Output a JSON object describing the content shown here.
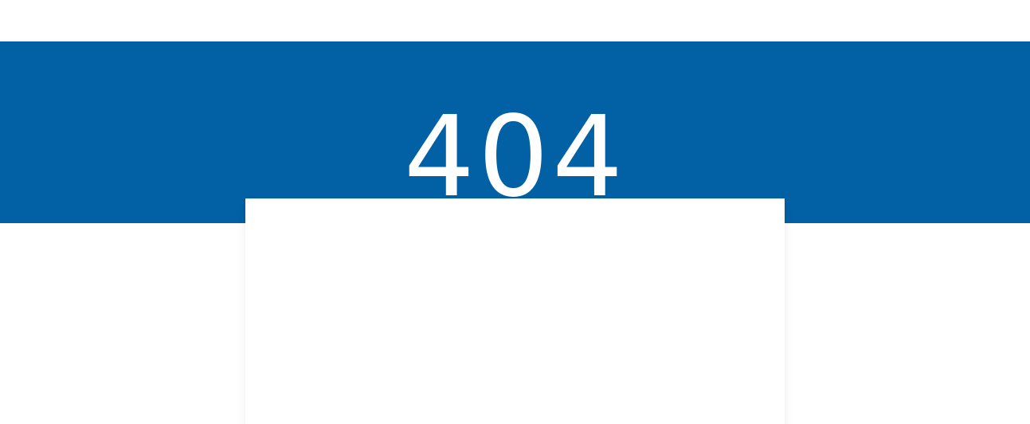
{
  "hero": {
    "error_code": "404"
  },
  "colors": {
    "band_background": "#0260a5",
    "error_code_text": "#ffffff",
    "card_background": "#ffffff"
  }
}
